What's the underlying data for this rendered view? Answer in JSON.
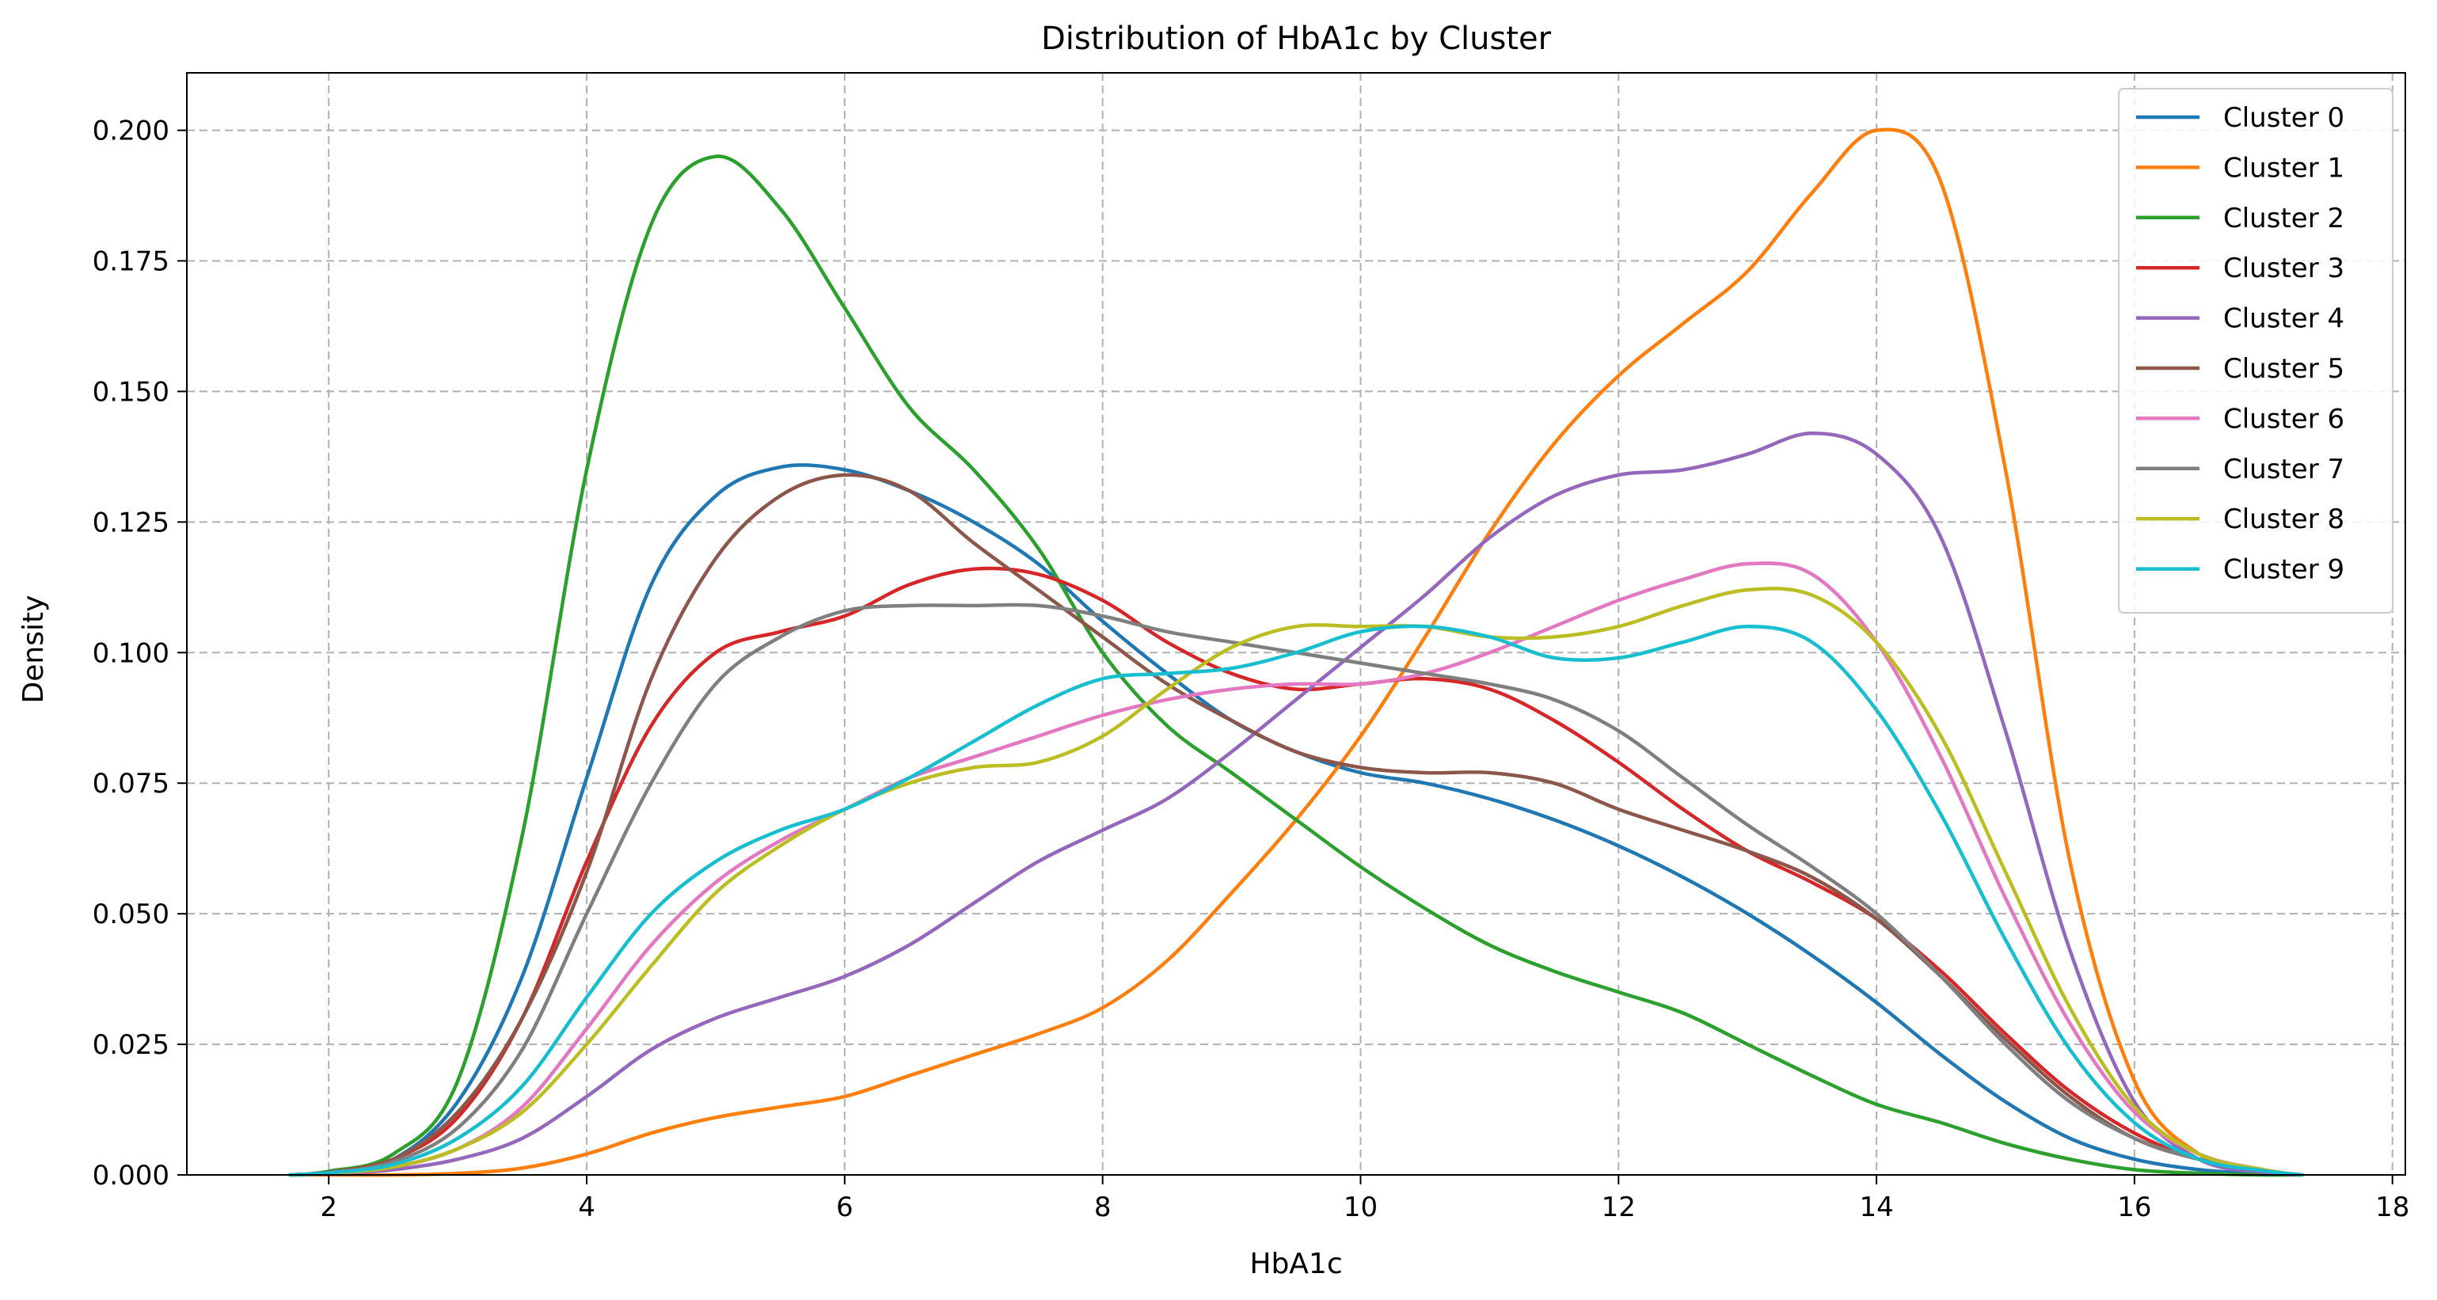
{
  "chart_data": {
    "type": "line",
    "title": "Distribution of HbA1c by Cluster",
    "xlabel": "HbA1c",
    "ylabel": "Density",
    "xlim": [
      0.9,
      18.1
    ],
    "ylim": [
      0,
      0.211
    ],
    "xticks": [
      "2",
      "4",
      "6",
      "8",
      "10",
      "12",
      "14",
      "16",
      "18"
    ],
    "yticks": [
      "0.000",
      "0.025",
      "0.050",
      "0.075",
      "0.100",
      "0.125",
      "0.150",
      "0.175",
      "0.200"
    ],
    "grid": true,
    "legend_position": "top-right",
    "x": [
      1.7,
      2.0,
      2.5,
      3.0,
      3.5,
      4.0,
      4.5,
      5.0,
      5.5,
      6.0,
      6.5,
      7.0,
      7.5,
      8.0,
      8.5,
      9.0,
      9.5,
      10.0,
      10.5,
      11.0,
      11.5,
      12.0,
      12.5,
      13.0,
      13.5,
      14.0,
      14.5,
      15.0,
      15.5,
      16.0,
      16.5,
      17.0,
      17.3
    ],
    "series": [
      {
        "name": "Cluster 0",
        "color": "#1f77b4",
        "values": [
          0.0,
          0.0005,
          0.003,
          0.014,
          0.038,
          0.076,
          0.113,
          0.13,
          0.1355,
          0.135,
          0.131,
          0.125,
          0.117,
          0.106,
          0.096,
          0.087,
          0.081,
          0.077,
          0.075,
          0.072,
          0.068,
          0.063,
          0.057,
          0.05,
          0.042,
          0.033,
          0.023,
          0.014,
          0.007,
          0.003,
          0.001,
          0.0002,
          0.0
        ]
      },
      {
        "name": "Cluster 1",
        "color": "#ff7f0e",
        "values": [
          0.0,
          0.0,
          0.0,
          0.0003,
          0.0013,
          0.004,
          0.008,
          0.011,
          0.013,
          0.015,
          0.019,
          0.023,
          0.027,
          0.032,
          0.041,
          0.054,
          0.068,
          0.084,
          0.103,
          0.123,
          0.14,
          0.153,
          0.163,
          0.173,
          0.188,
          0.2,
          0.19,
          0.135,
          0.06,
          0.018,
          0.004,
          0.0005,
          0.0
        ]
      },
      {
        "name": "Cluster 2",
        "color": "#2ca02c",
        "values": [
          0.0,
          0.0007,
          0.004,
          0.018,
          0.065,
          0.135,
          0.182,
          0.195,
          0.185,
          0.166,
          0.147,
          0.135,
          0.12,
          0.1,
          0.086,
          0.077,
          0.068,
          0.059,
          0.051,
          0.044,
          0.039,
          0.035,
          0.031,
          0.025,
          0.019,
          0.0135,
          0.01,
          0.006,
          0.003,
          0.001,
          0.0003,
          0.0,
          0.0
        ]
      },
      {
        "name": "Cluster 3",
        "color": "#d62728",
        "values": [
          0.0,
          0.0005,
          0.003,
          0.011,
          0.03,
          0.06,
          0.086,
          0.1,
          0.104,
          0.107,
          0.113,
          0.116,
          0.115,
          0.11,
          0.102,
          0.096,
          0.093,
          0.094,
          0.095,
          0.093,
          0.087,
          0.079,
          0.07,
          0.062,
          0.056,
          0.049,
          0.039,
          0.027,
          0.016,
          0.008,
          0.003,
          0.0008,
          0.0
        ]
      },
      {
        "name": "Cluster 4",
        "color": "#9467bd",
        "values": [
          0.0,
          0.0002,
          0.001,
          0.003,
          0.007,
          0.015,
          0.024,
          0.03,
          0.034,
          0.038,
          0.044,
          0.052,
          0.06,
          0.066,
          0.072,
          0.081,
          0.091,
          0.101,
          0.111,
          0.122,
          0.13,
          0.134,
          0.135,
          0.138,
          0.142,
          0.138,
          0.122,
          0.085,
          0.043,
          0.014,
          0.003,
          0.0005,
          0.0
        ]
      },
      {
        "name": "Cluster 5",
        "color": "#8c564b",
        "values": [
          0.0,
          0.0005,
          0.003,
          0.012,
          0.03,
          0.058,
          0.095,
          0.118,
          0.13,
          0.134,
          0.131,
          0.121,
          0.112,
          0.103,
          0.094,
          0.087,
          0.081,
          0.078,
          0.077,
          0.077,
          0.075,
          0.07,
          0.066,
          0.062,
          0.057,
          0.049,
          0.038,
          0.026,
          0.015,
          0.007,
          0.003,
          0.0008,
          0.0
        ]
      },
      {
        "name": "Cluster 6",
        "color": "#e377c2",
        "values": [
          0.0,
          0.0003,
          0.0015,
          0.005,
          0.013,
          0.028,
          0.044,
          0.056,
          0.064,
          0.07,
          0.076,
          0.08,
          0.084,
          0.088,
          0.091,
          0.093,
          0.094,
          0.094,
          0.096,
          0.1,
          0.105,
          0.11,
          0.114,
          0.117,
          0.115,
          0.102,
          0.08,
          0.053,
          0.029,
          0.012,
          0.004,
          0.001,
          0.0
        ]
      },
      {
        "name": "Cluster 7",
        "color": "#7f7f7f",
        "values": [
          0.0,
          0.0004,
          0.0025,
          0.009,
          0.024,
          0.05,
          0.075,
          0.094,
          0.103,
          0.108,
          0.109,
          0.109,
          0.109,
          0.107,
          0.104,
          0.102,
          0.1,
          0.098,
          0.096,
          0.094,
          0.091,
          0.085,
          0.076,
          0.067,
          0.059,
          0.05,
          0.038,
          0.025,
          0.014,
          0.007,
          0.003,
          0.0008,
          0.0
        ]
      },
      {
        "name": "Cluster 8",
        "color": "#bcbd22",
        "values": [
          0.0,
          0.0003,
          0.0015,
          0.005,
          0.012,
          0.025,
          0.04,
          0.054,
          0.063,
          0.07,
          0.075,
          0.078,
          0.079,
          0.084,
          0.093,
          0.101,
          0.105,
          0.105,
          0.105,
          0.103,
          0.103,
          0.105,
          0.109,
          0.112,
          0.111,
          0.102,
          0.084,
          0.058,
          0.032,
          0.013,
          0.004,
          0.001,
          0.0
        ]
      },
      {
        "name": "Cluster 9",
        "color": "#17becf",
        "values": [
          0.0,
          0.0004,
          0.002,
          0.007,
          0.017,
          0.034,
          0.05,
          0.06,
          0.066,
          0.07,
          0.076,
          0.083,
          0.09,
          0.095,
          0.096,
          0.097,
          0.1,
          0.104,
          0.105,
          0.103,
          0.099,
          0.099,
          0.102,
          0.105,
          0.102,
          0.089,
          0.069,
          0.045,
          0.024,
          0.01,
          0.003,
          0.0008,
          0.0
        ]
      }
    ]
  }
}
